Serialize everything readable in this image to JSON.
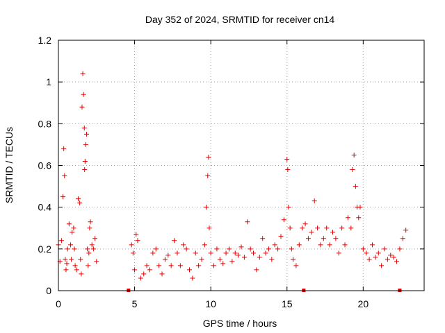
{
  "chart_data": {
    "type": "scatter",
    "title": "Day 352 of 2024, SRMTID for receiver cn14",
    "xlabel": "GPS time / hours",
    "ylabel": "SRMTID / TECUs",
    "xlim": [
      0,
      24
    ],
    "ylim": [
      0,
      1.2
    ],
    "x_ticks": [
      0,
      5,
      10,
      15,
      20
    ],
    "x_tick_labels": [
      "0",
      "5",
      "10",
      "15",
      "20"
    ],
    "y_ticks": [
      0,
      0.2,
      0.4,
      0.6,
      0.8,
      1.0,
      1.2
    ],
    "y_tick_labels": [
      "0",
      "0.2",
      "0.4",
      "0.6",
      "0.8",
      "1",
      "1.2"
    ],
    "grid": true,
    "marker": "plus",
    "color": "#e00000",
    "baseline_markers_x": [
      4.6,
      16.1,
      22.4
    ],
    "series": [
      {
        "name": "SRMTID",
        "x": [
          0.0,
          0.1,
          0.2,
          0.3,
          0.35,
          0.4,
          0.45,
          0.5,
          0.55,
          0.6,
          0.7,
          0.8,
          0.85,
          0.9,
          1.0,
          1.05,
          1.1,
          1.2,
          1.3,
          1.4,
          1.45,
          1.5,
          1.55,
          1.6,
          1.65,
          1.7,
          1.72,
          1.75,
          1.8,
          1.85,
          1.9,
          1.95,
          2.0,
          2.05,
          2.1,
          2.2,
          2.3,
          2.4,
          2.5,
          4.8,
          4.9,
          5.0,
          5.1,
          5.2,
          5.4,
          5.6,
          5.8,
          6.0,
          6.2,
          6.4,
          6.6,
          6.8,
          7.0,
          7.2,
          7.4,
          7.6,
          7.8,
          8.0,
          8.2,
          8.4,
          8.6,
          8.8,
          9.0,
          9.2,
          9.4,
          9.6,
          9.7,
          9.8,
          9.85,
          9.9,
          10.0,
          10.2,
          10.4,
          10.6,
          10.8,
          11.0,
          11.2,
          11.4,
          11.6,
          11.8,
          12.0,
          12.2,
          12.4,
          12.6,
          12.8,
          13.0,
          13.2,
          13.4,
          13.6,
          13.8,
          14.0,
          14.2,
          14.4,
          14.6,
          14.8,
          15.0,
          15.05,
          15.1,
          15.2,
          15.3,
          15.4,
          15.6,
          15.8,
          16.0,
          16.2,
          16.4,
          16.6,
          16.8,
          17.0,
          17.2,
          17.4,
          17.6,
          17.8,
          18.0,
          18.2,
          18.4,
          18.6,
          18.8,
          19.0,
          19.2,
          19.3,
          19.4,
          19.5,
          19.6,
          19.7,
          19.8,
          20.0,
          20.2,
          20.4,
          20.6,
          20.8,
          21.0,
          21.2,
          21.4,
          21.6,
          21.8,
          22.0,
          22.2,
          22.4,
          22.6,
          22.8
        ],
        "y": [
          0.22,
          0.14,
          0.24,
          0.45,
          0.68,
          0.55,
          0.15,
          0.1,
          0.13,
          0.2,
          0.32,
          0.22,
          0.15,
          0.28,
          0.3,
          0.2,
          0.12,
          0.1,
          0.44,
          0.42,
          0.15,
          0.08,
          0.88,
          1.04,
          0.94,
          0.78,
          0.58,
          0.62,
          0.7,
          0.75,
          0.2,
          0.12,
          0.18,
          0.3,
          0.33,
          0.22,
          0.2,
          0.25,
          0.14,
          0.22,
          0.18,
          0.1,
          0.27,
          0.24,
          0.06,
          0.08,
          0.12,
          0.1,
          0.18,
          0.2,
          0.12,
          0.08,
          0.15,
          0.17,
          0.12,
          0.24,
          0.18,
          0.12,
          0.22,
          0.2,
          0.1,
          0.06,
          0.18,
          0.12,
          0.15,
          0.22,
          0.4,
          0.55,
          0.64,
          0.3,
          0.18,
          0.12,
          0.2,
          0.15,
          0.13,
          0.18,
          0.2,
          0.14,
          0.18,
          0.17,
          0.21,
          0.16,
          0.33,
          0.2,
          0.18,
          0.1,
          0.16,
          0.25,
          0.18,
          0.2,
          0.15,
          0.22,
          0.2,
          0.26,
          0.34,
          0.63,
          0.58,
          0.4,
          0.3,
          0.2,
          0.15,
          0.12,
          0.22,
          0.3,
          0.32,
          0.25,
          0.28,
          0.43,
          0.3,
          0.22,
          0.25,
          0.3,
          0.22,
          0.28,
          0.25,
          0.18,
          0.3,
          0.22,
          0.35,
          0.3,
          0.58,
          0.65,
          0.5,
          0.4,
          0.35,
          0.4,
          0.2,
          0.18,
          0.15,
          0.22,
          0.16,
          0.18,
          0.12,
          0.2,
          0.15,
          0.17,
          0.16,
          0.14,
          0.2,
          0.25,
          0.29
        ]
      }
    ]
  }
}
